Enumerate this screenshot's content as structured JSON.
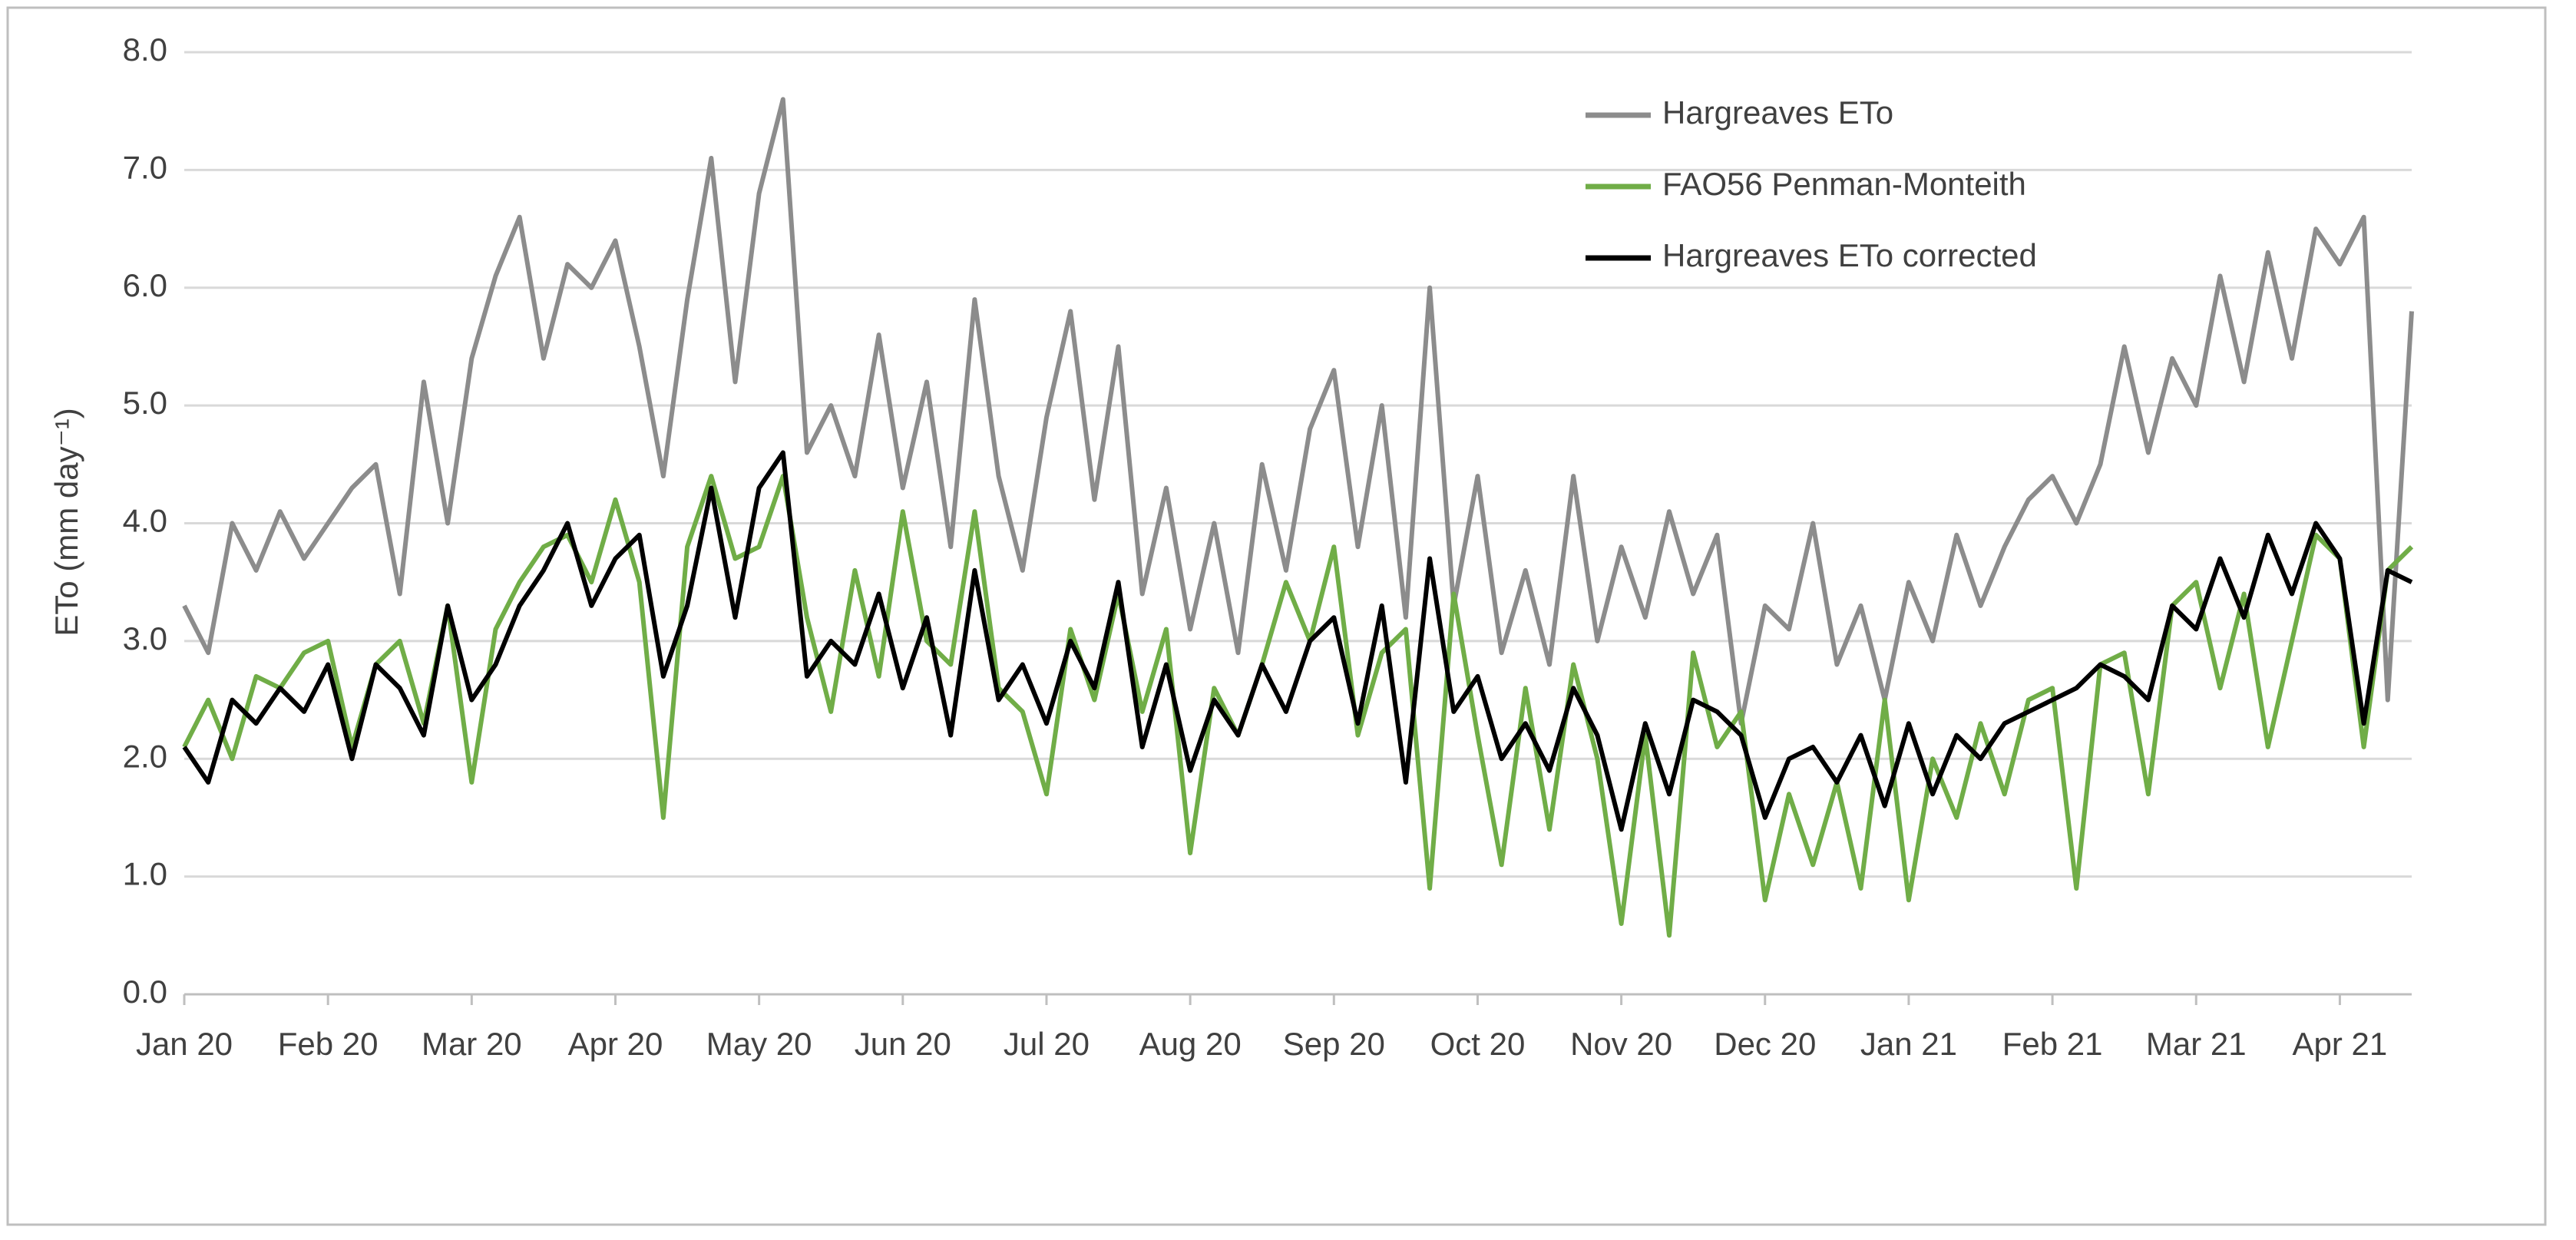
{
  "chart_data": {
    "type": "line",
    "y_label": "ETo (mm day⁻¹)",
    "categories": [
      "Jan 20",
      null,
      null,
      null,
      null,
      null,
      "Feb 20",
      null,
      null,
      null,
      null,
      null,
      "Mar 20",
      null,
      null,
      null,
      null,
      null,
      "Apr 20",
      null,
      null,
      null,
      null,
      null,
      "May 20",
      null,
      null,
      null,
      null,
      null,
      "Jun 20",
      null,
      null,
      null,
      null,
      null,
      "Jul 20",
      null,
      null,
      null,
      null,
      null,
      "Aug 20",
      null,
      null,
      null,
      null,
      null,
      "Sep 20",
      null,
      null,
      null,
      null,
      null,
      "Oct 20",
      null,
      null,
      null,
      null,
      null,
      "Nov 20",
      null,
      null,
      null,
      null,
      null,
      "Dec 20",
      null,
      null,
      null,
      null,
      null,
      "Jan 21",
      null,
      null,
      null,
      null,
      null,
      "Feb 21",
      null,
      null,
      null,
      null,
      null,
      "Mar 21",
      null,
      null,
      null,
      null,
      null,
      "Apr 21",
      null,
      null,
      null
    ],
    "series": [
      {
        "name": "Hargreaves ETo",
        "color": "#8c8c8c",
        "values": [
          3.3,
          2.9,
          4.0,
          3.6,
          4.1,
          3.7,
          4.0,
          4.3,
          4.5,
          3.4,
          5.2,
          4.0,
          5.4,
          6.1,
          6.6,
          5.4,
          6.2,
          6.0,
          6.4,
          5.5,
          4.4,
          5.9,
          7.1,
          5.2,
          6.8,
          7.6,
          4.6,
          5.0,
          4.4,
          5.6,
          4.3,
          5.2,
          3.8,
          5.9,
          4.4,
          3.6,
          4.9,
          5.8,
          4.2,
          5.5,
          3.4,
          4.3,
          3.1,
          4.0,
          2.9,
          4.5,
          3.6,
          4.8,
          5.3,
          3.8,
          5.0,
          3.2,
          6.0,
          3.3,
          4.4,
          2.9,
          3.6,
          2.8,
          4.4,
          3.0,
          3.8,
          3.2,
          4.1,
          3.4,
          3.9,
          2.3,
          3.3,
          3.1,
          4.0,
          2.8,
          3.3,
          2.5,
          3.5,
          3.0,
          3.9,
          3.3,
          3.8,
          4.2,
          4.4,
          4.0,
          4.5,
          5.5,
          4.6,
          5.4,
          5.0,
          6.1,
          5.2,
          6.3,
          5.4,
          6.5,
          6.2,
          6.6,
          2.5,
          5.8
        ]
      },
      {
        "name": "FAO56 Penman-Monteith",
        "color": "#70ad47",
        "values": [
          2.1,
          2.5,
          2.0,
          2.7,
          2.6,
          2.9,
          3.0,
          2.1,
          2.8,
          3.0,
          2.3,
          3.3,
          1.8,
          3.1,
          3.5,
          3.8,
          3.9,
          3.5,
          4.2,
          3.5,
          1.5,
          3.8,
          4.4,
          3.7,
          3.8,
          4.4,
          3.2,
          2.4,
          3.6,
          2.7,
          4.1,
          3.0,
          2.8,
          4.1,
          2.6,
          2.4,
          1.7,
          3.1,
          2.5,
          3.4,
          2.4,
          3.1,
          1.2,
          2.6,
          2.2,
          2.8,
          3.5,
          3.0,
          3.8,
          2.2,
          2.9,
          3.1,
          0.9,
          3.4,
          2.2,
          1.1,
          2.6,
          1.4,
          2.8,
          2.0,
          0.6,
          2.2,
          0.5,
          2.9,
          2.1,
          2.4,
          0.8,
          1.7,
          1.1,
          1.8,
          0.9,
          2.5,
          0.8,
          2.0,
          1.5,
          2.3,
          1.7,
          2.5,
          2.6,
          0.9,
          2.8,
          2.9,
          1.7,
          3.3,
          3.5,
          2.6,
          3.4,
          2.1,
          3.0,
          3.9,
          3.7,
          2.1,
          3.6,
          3.8
        ]
      },
      {
        "name": "Hargreaves ETo corrected",
        "color": "#000000",
        "values": [
          2.1,
          1.8,
          2.5,
          2.3,
          2.6,
          2.4,
          2.8,
          2.0,
          2.8,
          2.6,
          2.2,
          3.3,
          2.5,
          2.8,
          3.3,
          3.6,
          4.0,
          3.3,
          3.7,
          3.9,
          2.7,
          3.3,
          4.3,
          3.2,
          4.3,
          4.6,
          2.7,
          3.0,
          2.8,
          3.4,
          2.6,
          3.2,
          2.2,
          3.6,
          2.5,
          2.8,
          2.3,
          3.0,
          2.6,
          3.5,
          2.1,
          2.8,
          1.9,
          2.5,
          2.2,
          2.8,
          2.4,
          3.0,
          3.2,
          2.3,
          3.3,
          1.8,
          3.7,
          2.4,
          2.7,
          2.0,
          2.3,
          1.9,
          2.6,
          2.2,
          1.4,
          2.3,
          1.7,
          2.5,
          2.4,
          2.2,
          1.5,
          2.0,
          2.1,
          1.8,
          2.2,
          1.6,
          2.3,
          1.7,
          2.2,
          2.0,
          2.3,
          2.4,
          2.5,
          2.6,
          2.8,
          2.7,
          2.5,
          3.3,
          3.1,
          3.7,
          3.2,
          3.9,
          3.4,
          4.0,
          3.7,
          2.3,
          3.6,
          3.5
        ]
      }
    ],
    "ylim": [
      0,
      8
    ],
    "yticks": [
      {
        "value": 0,
        "label": "0.0"
      },
      {
        "value": 1,
        "label": "1.0"
      },
      {
        "value": 2,
        "label": "2.0"
      },
      {
        "value": 3,
        "label": "3.0"
      },
      {
        "value": 4,
        "label": "4.0"
      },
      {
        "value": 5,
        "label": "5.0"
      },
      {
        "value": 6,
        "label": "6.0"
      },
      {
        "value": 7,
        "label": "7.0"
      },
      {
        "value": 8,
        "label": "8.0"
      }
    ],
    "grid": true,
    "legend": "top-right"
  }
}
